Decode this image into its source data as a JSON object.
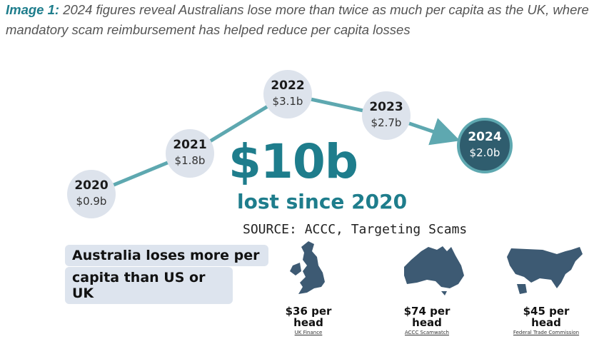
{
  "caption": {
    "label": "Image 1:",
    "text": "2024 figures reveal Australians lose more than twice as much per capita as the UK, where mandatory scam reimbursement has helped reduce per capita losses"
  },
  "timeline": [
    {
      "year": "2020",
      "amount": "$0.9b"
    },
    {
      "year": "2021",
      "amount": "$1.8b"
    },
    {
      "year": "2022",
      "amount": "$3.1b"
    },
    {
      "year": "2023",
      "amount": "$2.7b"
    },
    {
      "year": "2024",
      "amount": "$2.0b"
    }
  ],
  "headline": "$10b",
  "subheadline": "lost since 2020",
  "source": "SOURCE: ACCC, Targeting Scams",
  "callout": [
    "Australia loses more per",
    "capita  than US or UK"
  ],
  "countries": [
    {
      "figure": "$36 per head",
      "source": "UK Finance"
    },
    {
      "figure": "$74 per head",
      "source": "ACCC Scamwatch"
    },
    {
      "figure": "$45 per head",
      "source": "Federal Trade Commission"
    }
  ]
}
